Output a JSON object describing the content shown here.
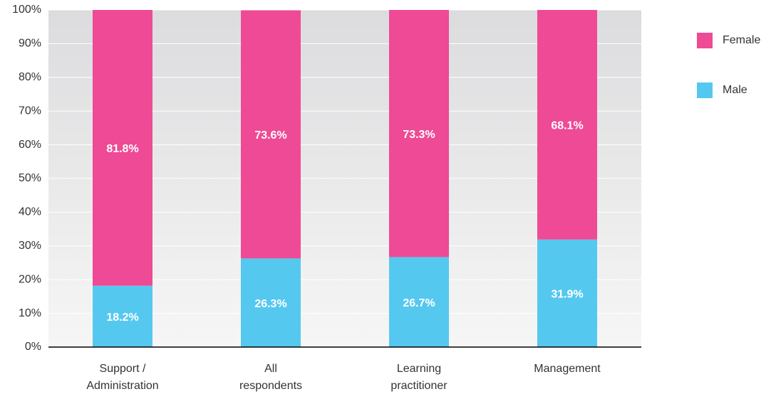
{
  "chart_data": {
    "type": "stacked_bar",
    "categories": [
      [
        "Support /",
        "Administration"
      ],
      [
        "All",
        "respondents"
      ],
      [
        "Learning",
        "practitioner"
      ],
      [
        "Management"
      ]
    ],
    "series": [
      {
        "name": "Male",
        "color": "#55c8f0",
        "values": [
          18.2,
          26.3,
          26.7,
          31.9
        ],
        "value_labels": [
          "18.2%",
          "26.3%",
          "26.7%",
          "31.9%"
        ]
      },
      {
        "name": "Female",
        "color": "#ee4a95",
        "values": [
          81.8,
          73.6,
          73.3,
          68.1
        ],
        "value_labels": [
          "81.8%",
          "73.6%",
          "73.3%",
          "68.1%"
        ]
      }
    ],
    "ylim": [
      0,
      100
    ],
    "yticks": [
      {
        "value": 0,
        "label": "0%"
      },
      {
        "value": 10,
        "label": "10%"
      },
      {
        "value": 20,
        "label": "20%"
      },
      {
        "value": 30,
        "label": "30%"
      },
      {
        "value": 40,
        "label": "40%"
      },
      {
        "value": 50,
        "label": "50%"
      },
      {
        "value": 60,
        "label": "60%"
      },
      {
        "value": 70,
        "label": "70%"
      },
      {
        "value": 80,
        "label": "80%"
      },
      {
        "value": 90,
        "label": "90%"
      },
      {
        "value": 100,
        "label": "100%"
      }
    ],
    "grid": true
  }
}
